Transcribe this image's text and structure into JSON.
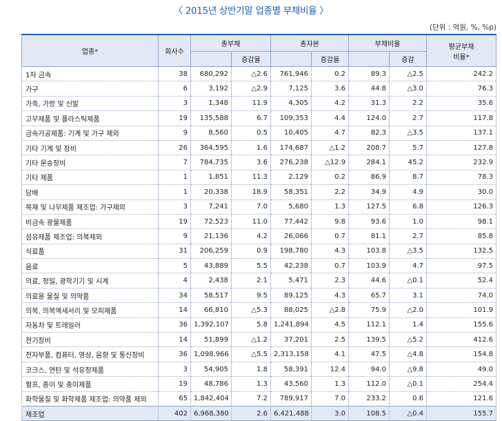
{
  "title": "〈 2015년 상반기말 업종별 부채비율 〉",
  "unit": "(단위 : 억원, %, %p)",
  "headers": {
    "industry": "업종*",
    "companies": "회사수",
    "total_debt": "총부채",
    "debt_change": "증감율",
    "total_capital": "총자본",
    "capital_change": "증감율",
    "debt_ratio": "부채비율",
    "ratio_change": "증감",
    "avg_ratio_line1": "평균부채",
    "avg_ratio_line2": "비율*"
  },
  "rows": [
    {
      "industry": "1차 금속",
      "companies": "38",
      "total_debt": "680,292",
      "debt_change": "△2.6",
      "total_capital": "761,946",
      "capital_change": "0.2",
      "debt_ratio": "89.3",
      "ratio_change": "△2.5",
      "avg_ratio": "242.2"
    },
    {
      "industry": "가구",
      "companies": "6",
      "total_debt": "3,192",
      "debt_change": "△2.9",
      "total_capital": "7,125",
      "capital_change": "3.6",
      "debt_ratio": "44.8",
      "ratio_change": "△3.0",
      "avg_ratio": "76.3"
    },
    {
      "industry": "가죽, 가방 및 신발",
      "companies": "3",
      "total_debt": "1,348",
      "debt_change": "11.9",
      "total_capital": "4,305",
      "capital_change": "4.2",
      "debt_ratio": "31.3",
      "ratio_change": "2.2",
      "avg_ratio": "35.6"
    },
    {
      "industry": "고무제품 및 플라스틱제품",
      "companies": "19",
      "total_debt": "135,588",
      "debt_change": "6.7",
      "total_capital": "109,353",
      "capital_change": "4.4",
      "debt_ratio": "124.0",
      "ratio_change": "2.7",
      "avg_ratio": "117.8"
    },
    {
      "industry": "금속가공제품: 기계 및 가구 제외",
      "companies": "9",
      "total_debt": "8,560",
      "debt_change": "0.5",
      "total_capital": "10,405",
      "capital_change": "4.7",
      "debt_ratio": "82.3",
      "ratio_change": "△3.5",
      "avg_ratio": "137.1"
    },
    {
      "industry": "기타 기계 및 장비",
      "companies": "26",
      "total_debt": "364,595",
      "debt_change": "1.6",
      "total_capital": "174,687",
      "capital_change": "△1.2",
      "debt_ratio": "208.7",
      "ratio_change": "5.7",
      "avg_ratio": "127.8"
    },
    {
      "industry": "기타 운송장비",
      "companies": "7",
      "total_debt": "784,735",
      "debt_change": "3.6",
      "total_capital": "276,238",
      "capital_change": "△12.9",
      "debt_ratio": "284.1",
      "ratio_change": "45.2",
      "avg_ratio": "232.9"
    },
    {
      "industry": "기타 제품",
      "companies": "1",
      "total_debt": "1,851",
      "debt_change": "11.3",
      "total_capital": "2,129",
      "capital_change": "0.2",
      "debt_ratio": "86.9",
      "ratio_change": "8.7",
      "avg_ratio": "78.3"
    },
    {
      "industry": "담배",
      "companies": "1",
      "total_debt": "20,338",
      "debt_change": "18.9",
      "total_capital": "58,351",
      "capital_change": "2.2",
      "debt_ratio": "34.9",
      "ratio_change": "4.9",
      "avg_ratio": "30.0"
    },
    {
      "industry": "목재 및 나무제품 제조업: 가구제외",
      "companies": "3",
      "total_debt": "7,241",
      "debt_change": "7.0",
      "total_capital": "5,680",
      "capital_change": "1.3",
      "debt_ratio": "127.5",
      "ratio_change": "6.8",
      "avg_ratio": "126.3"
    },
    {
      "industry": "비금속 광물제품",
      "companies": "19",
      "total_debt": "72,523",
      "debt_change": "11.0",
      "total_capital": "77,442",
      "capital_change": "9.8",
      "debt_ratio": "93.6",
      "ratio_change": "1.0",
      "avg_ratio": "98.1"
    },
    {
      "industry": "섬유제품 제조업: 의복제외",
      "companies": "9",
      "total_debt": "21,136",
      "debt_change": "4.2",
      "total_capital": "26,066",
      "capital_change": "0.7",
      "debt_ratio": "81.1",
      "ratio_change": "2.7",
      "avg_ratio": "85.8"
    },
    {
      "industry": "식료품",
      "companies": "31",
      "total_debt": "206,259",
      "debt_change": "0.9",
      "total_capital": "198,780",
      "capital_change": "4.3",
      "debt_ratio": "103.8",
      "ratio_change": "△3.5",
      "avg_ratio": "132.5"
    },
    {
      "industry": "음료",
      "companies": "5",
      "total_debt": "43,889",
      "debt_change": "5.5",
      "total_capital": "42,238",
      "capital_change": "0.7",
      "debt_ratio": "103.9",
      "ratio_change": "4.7",
      "avg_ratio": "97.5"
    },
    {
      "industry": "의료, 정밀, 광학기기 및 시계",
      "companies": "4",
      "total_debt": "2,438",
      "debt_change": "2.1",
      "total_capital": "5,471",
      "capital_change": "2.3",
      "debt_ratio": "44.6",
      "ratio_change": "△0.1",
      "avg_ratio": "52.4"
    },
    {
      "industry": "의료용 물질 및 의약품",
      "companies": "34",
      "total_debt": "58,517",
      "debt_change": "9.5",
      "total_capital": "89,125",
      "capital_change": "4.3",
      "debt_ratio": "65.7",
      "ratio_change": "3.1",
      "avg_ratio": "74.0"
    },
    {
      "industry": "의복, 의복액세서리 및 모피제품",
      "companies": "14",
      "total_debt": "66,810",
      "debt_change": "△5.3",
      "total_capital": "88,025",
      "capital_change": "△2.8",
      "debt_ratio": "75.9",
      "ratio_change": "△2.0",
      "avg_ratio": "101.9"
    },
    {
      "industry": "자동차 및 트레일러",
      "companies": "36",
      "total_debt": "1,392,107",
      "debt_change": "5.8",
      "total_capital": "1,241,894",
      "capital_change": "4.5",
      "debt_ratio": "112.1",
      "ratio_change": "1.4",
      "avg_ratio": "155.6"
    },
    {
      "industry": "전기장비",
      "companies": "14",
      "total_debt": "51,899",
      "debt_change": "△1.2",
      "total_capital": "37,201",
      "capital_change": "2.5",
      "debt_ratio": "139.5",
      "ratio_change": "△5.2",
      "avg_ratio": "412.6"
    },
    {
      "industry": "전자부품, 컴퓨터, 영상, 음향 및 통신장비",
      "companies": "36",
      "total_debt": "1,098,966",
      "debt_change": "△5.5",
      "total_capital": "2,313,158",
      "capital_change": "4.1",
      "debt_ratio": "47.5",
      "ratio_change": "△4.8",
      "avg_ratio": "154.8"
    },
    {
      "industry": "코크스, 연탄 및 석유정제품",
      "companies": "3",
      "total_debt": "54,905",
      "debt_change": "1.8",
      "total_capital": "58,391",
      "capital_change": "12.4",
      "debt_ratio": "94.0",
      "ratio_change": "△9.8",
      "avg_ratio": "49.0"
    },
    {
      "industry": "펄프, 종이 및 종이제품",
      "companies": "19",
      "total_debt": "48,786",
      "debt_change": "1.3",
      "total_capital": "43,560",
      "capital_change": "1.3",
      "debt_ratio": "112.0",
      "ratio_change": "△0.1",
      "avg_ratio": "254.4"
    },
    {
      "industry": "화학물질 및 화학제품 제조업: 의약품 제외",
      "companies": "65",
      "total_debt": "1,842,404",
      "debt_change": "7.2",
      "total_capital": "789,917",
      "capital_change": "7.0",
      "debt_ratio": "233.2",
      "ratio_change": "0.6",
      "avg_ratio": "121.6"
    }
  ],
  "total": {
    "industry": "제조업",
    "companies": "402",
    "total_debt": "6,968,380",
    "debt_change": "2.6",
    "total_capital": "6,421,488",
    "capital_change": "3.0",
    "debt_ratio": "108.5",
    "ratio_change": "△0.4",
    "avg_ratio": "155.7"
  }
}
